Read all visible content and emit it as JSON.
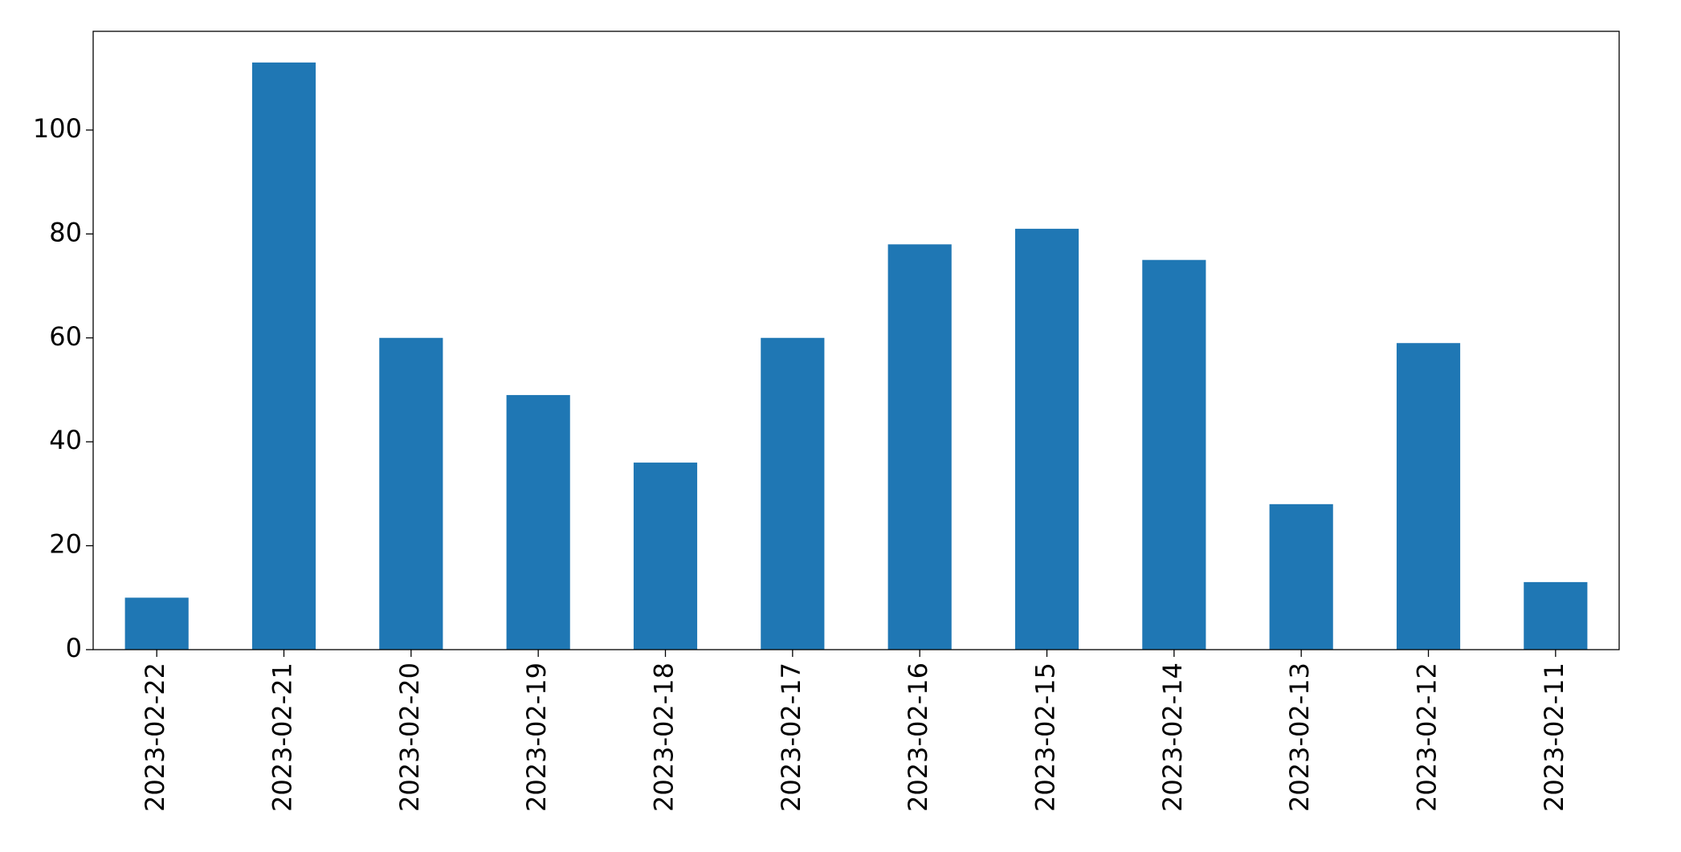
{
  "chart_data": {
    "type": "bar",
    "categories": [
      "2023-02-22",
      "2023-02-21",
      "2023-02-20",
      "2023-02-19",
      "2023-02-18",
      "2023-02-17",
      "2023-02-16",
      "2023-02-15",
      "2023-02-14",
      "2023-02-13",
      "2023-02-12",
      "2023-02-11"
    ],
    "values": [
      10,
      113,
      60,
      49,
      36,
      60,
      78,
      81,
      75,
      28,
      59,
      13
    ],
    "color": "#1f77b4",
    "ylim": [
      0,
      119
    ],
    "yticks": [
      0,
      20,
      40,
      60,
      80,
      100
    ],
    "grid": false
  }
}
